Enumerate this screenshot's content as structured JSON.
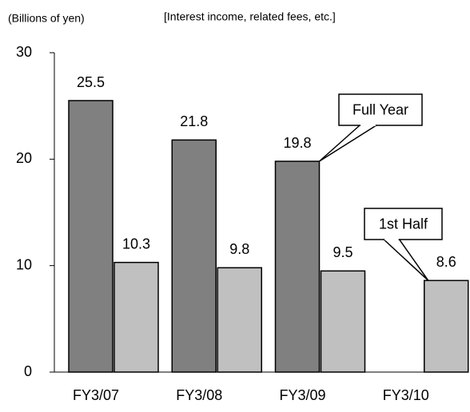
{
  "chart_data": {
    "type": "bar",
    "unit_label": "(Billions of yen)",
    "subtitle": "[Interest income, related fees, etc.]",
    "categories": [
      "FY3/07",
      "FY3/08",
      "FY3/09",
      "FY3/10"
    ],
    "series": [
      {
        "name": "Full Year",
        "color": "#808080",
        "values": [
          25.5,
          21.8,
          19.8,
          null
        ]
      },
      {
        "name": "1st Half",
        "color": "#c0c0c0",
        "values": [
          10.3,
          9.8,
          9.5,
          8.6
        ]
      }
    ],
    "ylim": [
      0,
      30
    ],
    "yticks": [
      0,
      10,
      20,
      30
    ],
    "grid": false
  }
}
